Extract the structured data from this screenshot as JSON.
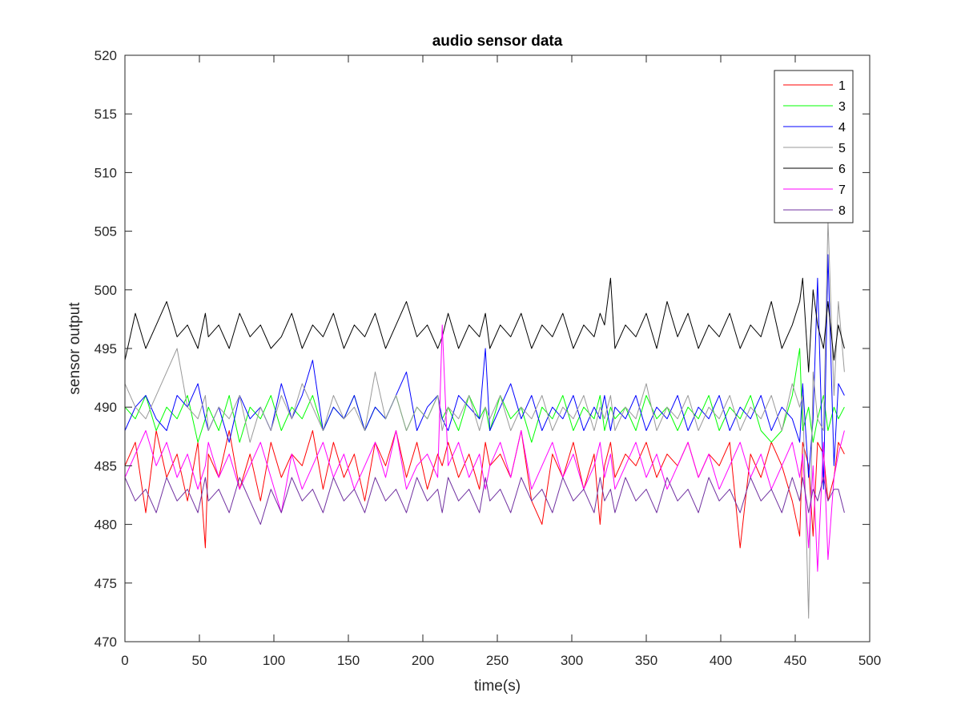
{
  "chart_data": {
    "type": "line",
    "title": "audio sensor data",
    "xlabel": "time(s)",
    "ylabel": "sensor output",
    "xlim": [
      0,
      500
    ],
    "ylim": [
      470,
      520
    ],
    "xticks": [
      0,
      50,
      100,
      150,
      200,
      250,
      300,
      350,
      400,
      450,
      500
    ],
    "yticks": [
      470,
      475,
      480,
      485,
      490,
      495,
      500,
      505,
      510,
      515,
      520
    ],
    "grid": false,
    "legend_position": "top-right",
    "x": [
      0,
      7,
      14,
      21,
      28,
      35,
      42,
      49,
      54,
      56,
      63,
      70,
      77,
      84,
      91,
      98,
      105,
      112,
      119,
      126,
      133,
      140,
      147,
      154,
      161,
      168,
      175,
      182,
      189,
      196,
      203,
      210,
      213,
      217,
      224,
      231,
      238,
      242,
      245,
      252,
      259,
      266,
      273,
      280,
      287,
      294,
      301,
      308,
      315,
      319,
      322,
      326,
      329,
      336,
      343,
      350,
      357,
      364,
      371,
      378,
      385,
      392,
      399,
      406,
      413,
      420,
      427,
      434,
      441,
      448,
      453,
      455,
      459,
      462,
      465,
      469,
      472,
      476,
      479,
      483
    ],
    "series": [
      {
        "name": "1",
        "color": "#ff0000",
        "values": [
          485,
          487,
          481,
          488,
          484,
          486,
          482,
          487,
          478,
          486,
          484,
          488,
          483,
          486,
          482,
          487,
          484,
          486,
          485,
          488,
          483,
          487,
          484,
          486,
          482,
          487,
          485,
          488,
          484,
          487,
          483,
          486,
          485,
          487,
          484,
          486,
          483,
          487,
          485,
          486,
          484,
          488,
          482,
          480,
          486,
          484,
          487,
          483,
          486,
          480,
          485,
          487,
          484,
          486,
          485,
          487,
          484,
          486,
          485,
          487,
          484,
          486,
          485,
          487,
          478,
          486,
          484,
          487,
          485,
          482,
          479,
          487,
          485,
          479,
          487,
          486,
          482,
          484,
          487,
          486
        ]
      },
      {
        "name": "3",
        "color": "#00ff00",
        "values": [
          490,
          489,
          491,
          488,
          490,
          489,
          491,
          487,
          489,
          490,
          488,
          491,
          487,
          490,
          489,
          491,
          488,
          490,
          489,
          491,
          488,
          490,
          489,
          491,
          488,
          490,
          489,
          491,
          488,
          490,
          489,
          491,
          489,
          490,
          488,
          491,
          489,
          490,
          488,
          491,
          489,
          490,
          487,
          490,
          489,
          491,
          488,
          490,
          489,
          491,
          488,
          490,
          489,
          490,
          488,
          491,
          489,
          490,
          488,
          490,
          489,
          491,
          488,
          490,
          489,
          491,
          488,
          487,
          488,
          491,
          495,
          488,
          490,
          487,
          489,
          491,
          488,
          490,
          489,
          490
        ]
      },
      {
        "name": "4",
        "color": "#0000ff",
        "values": [
          488,
          490,
          491,
          489,
          488,
          491,
          490,
          492,
          489,
          488,
          490,
          487,
          491,
          489,
          490,
          488,
          492,
          489,
          491,
          494,
          488,
          490,
          489,
          491,
          488,
          490,
          489,
          491,
          493,
          488,
          490,
          491,
          489,
          488,
          491,
          490,
          489,
          495,
          488,
          490,
          492,
          489,
          491,
          488,
          490,
          489,
          491,
          488,
          490,
          489,
          491,
          488,
          490,
          489,
          491,
          488,
          490,
          489,
          491,
          488,
          490,
          489,
          491,
          488,
          490,
          489,
          491,
          488,
          490,
          489,
          487,
          492,
          484,
          489,
          501,
          483,
          503,
          485,
          492,
          491
        ]
      },
      {
        "name": "5",
        "color": "#999999",
        "values": [
          492,
          490,
          489,
          491,
          493,
          495,
          490,
          489,
          491,
          488,
          490,
          489,
          491,
          487,
          490,
          488,
          491,
          489,
          492,
          490,
          488,
          491,
          489,
          490,
          488,
          493,
          489,
          491,
          488,
          490,
          489,
          491,
          488,
          490,
          489,
          491,
          488,
          490,
          489,
          491,
          488,
          490,
          489,
          491,
          488,
          490,
          489,
          491,
          488,
          490,
          489,
          491,
          488,
          490,
          489,
          492,
          488,
          490,
          489,
          491,
          488,
          490,
          489,
          491,
          488,
          490,
          489,
          491,
          488,
          492,
          490,
          491,
          472,
          493,
          489,
          488,
          506,
          491,
          499,
          493
        ]
      },
      {
        "name": "6",
        "color": "#000000",
        "values": [
          494,
          498,
          495,
          497,
          499,
          496,
          497,
          495,
          498,
          496,
          497,
          495,
          498,
          496,
          497,
          495,
          496,
          498,
          495,
          497,
          496,
          498,
          495,
          497,
          496,
          498,
          495,
          497,
          499,
          496,
          497,
          495,
          496,
          498,
          495,
          497,
          496,
          498,
          495,
          497,
          496,
          498,
          495,
          497,
          496,
          498,
          495,
          497,
          496,
          498,
          497,
          501,
          495,
          497,
          496,
          498,
          495,
          499,
          496,
          498,
          495,
          497,
          496,
          498,
          495,
          497,
          496,
          499,
          495,
          497,
          499,
          501,
          493,
          500,
          497,
          495,
          499,
          494,
          497,
          495
        ]
      },
      {
        "name": "7",
        "color": "#ff00ff",
        "values": [
          484,
          486,
          488,
          485,
          487,
          484,
          486,
          483,
          485,
          487,
          484,
          486,
          483,
          485,
          487,
          484,
          481,
          486,
          483,
          485,
          487,
          484,
          486,
          483,
          485,
          487,
          484,
          488,
          483,
          485,
          486,
          484,
          497,
          485,
          487,
          484,
          486,
          483,
          485,
          487,
          484,
          488,
          483,
          485,
          487,
          484,
          486,
          483,
          485,
          487,
          484,
          486,
          483,
          485,
          487,
          484,
          486,
          483,
          485,
          487,
          484,
          486,
          483,
          485,
          487,
          484,
          486,
          483,
          485,
          487,
          484,
          486,
          478,
          485,
          476,
          487,
          477,
          484,
          486,
          488
        ]
      },
      {
        "name": "8",
        "color": "#7030a0",
        "values": [
          484,
          482,
          483,
          481,
          484,
          482,
          483,
          481,
          484,
          482,
          483,
          481,
          484,
          482,
          480,
          483,
          481,
          484,
          482,
          483,
          481,
          484,
          482,
          483,
          481,
          484,
          482,
          483,
          481,
          484,
          482,
          483,
          481,
          484,
          482,
          483,
          481,
          484,
          482,
          483,
          481,
          484,
          482,
          483,
          481,
          484,
          482,
          483,
          481,
          484,
          482,
          483,
          481,
          484,
          482,
          483,
          481,
          484,
          482,
          483,
          481,
          484,
          482,
          483,
          481,
          484,
          482,
          483,
          481,
          484,
          482,
          484,
          481,
          483,
          482,
          484,
          482,
          483,
          483,
          481
        ]
      }
    ]
  }
}
